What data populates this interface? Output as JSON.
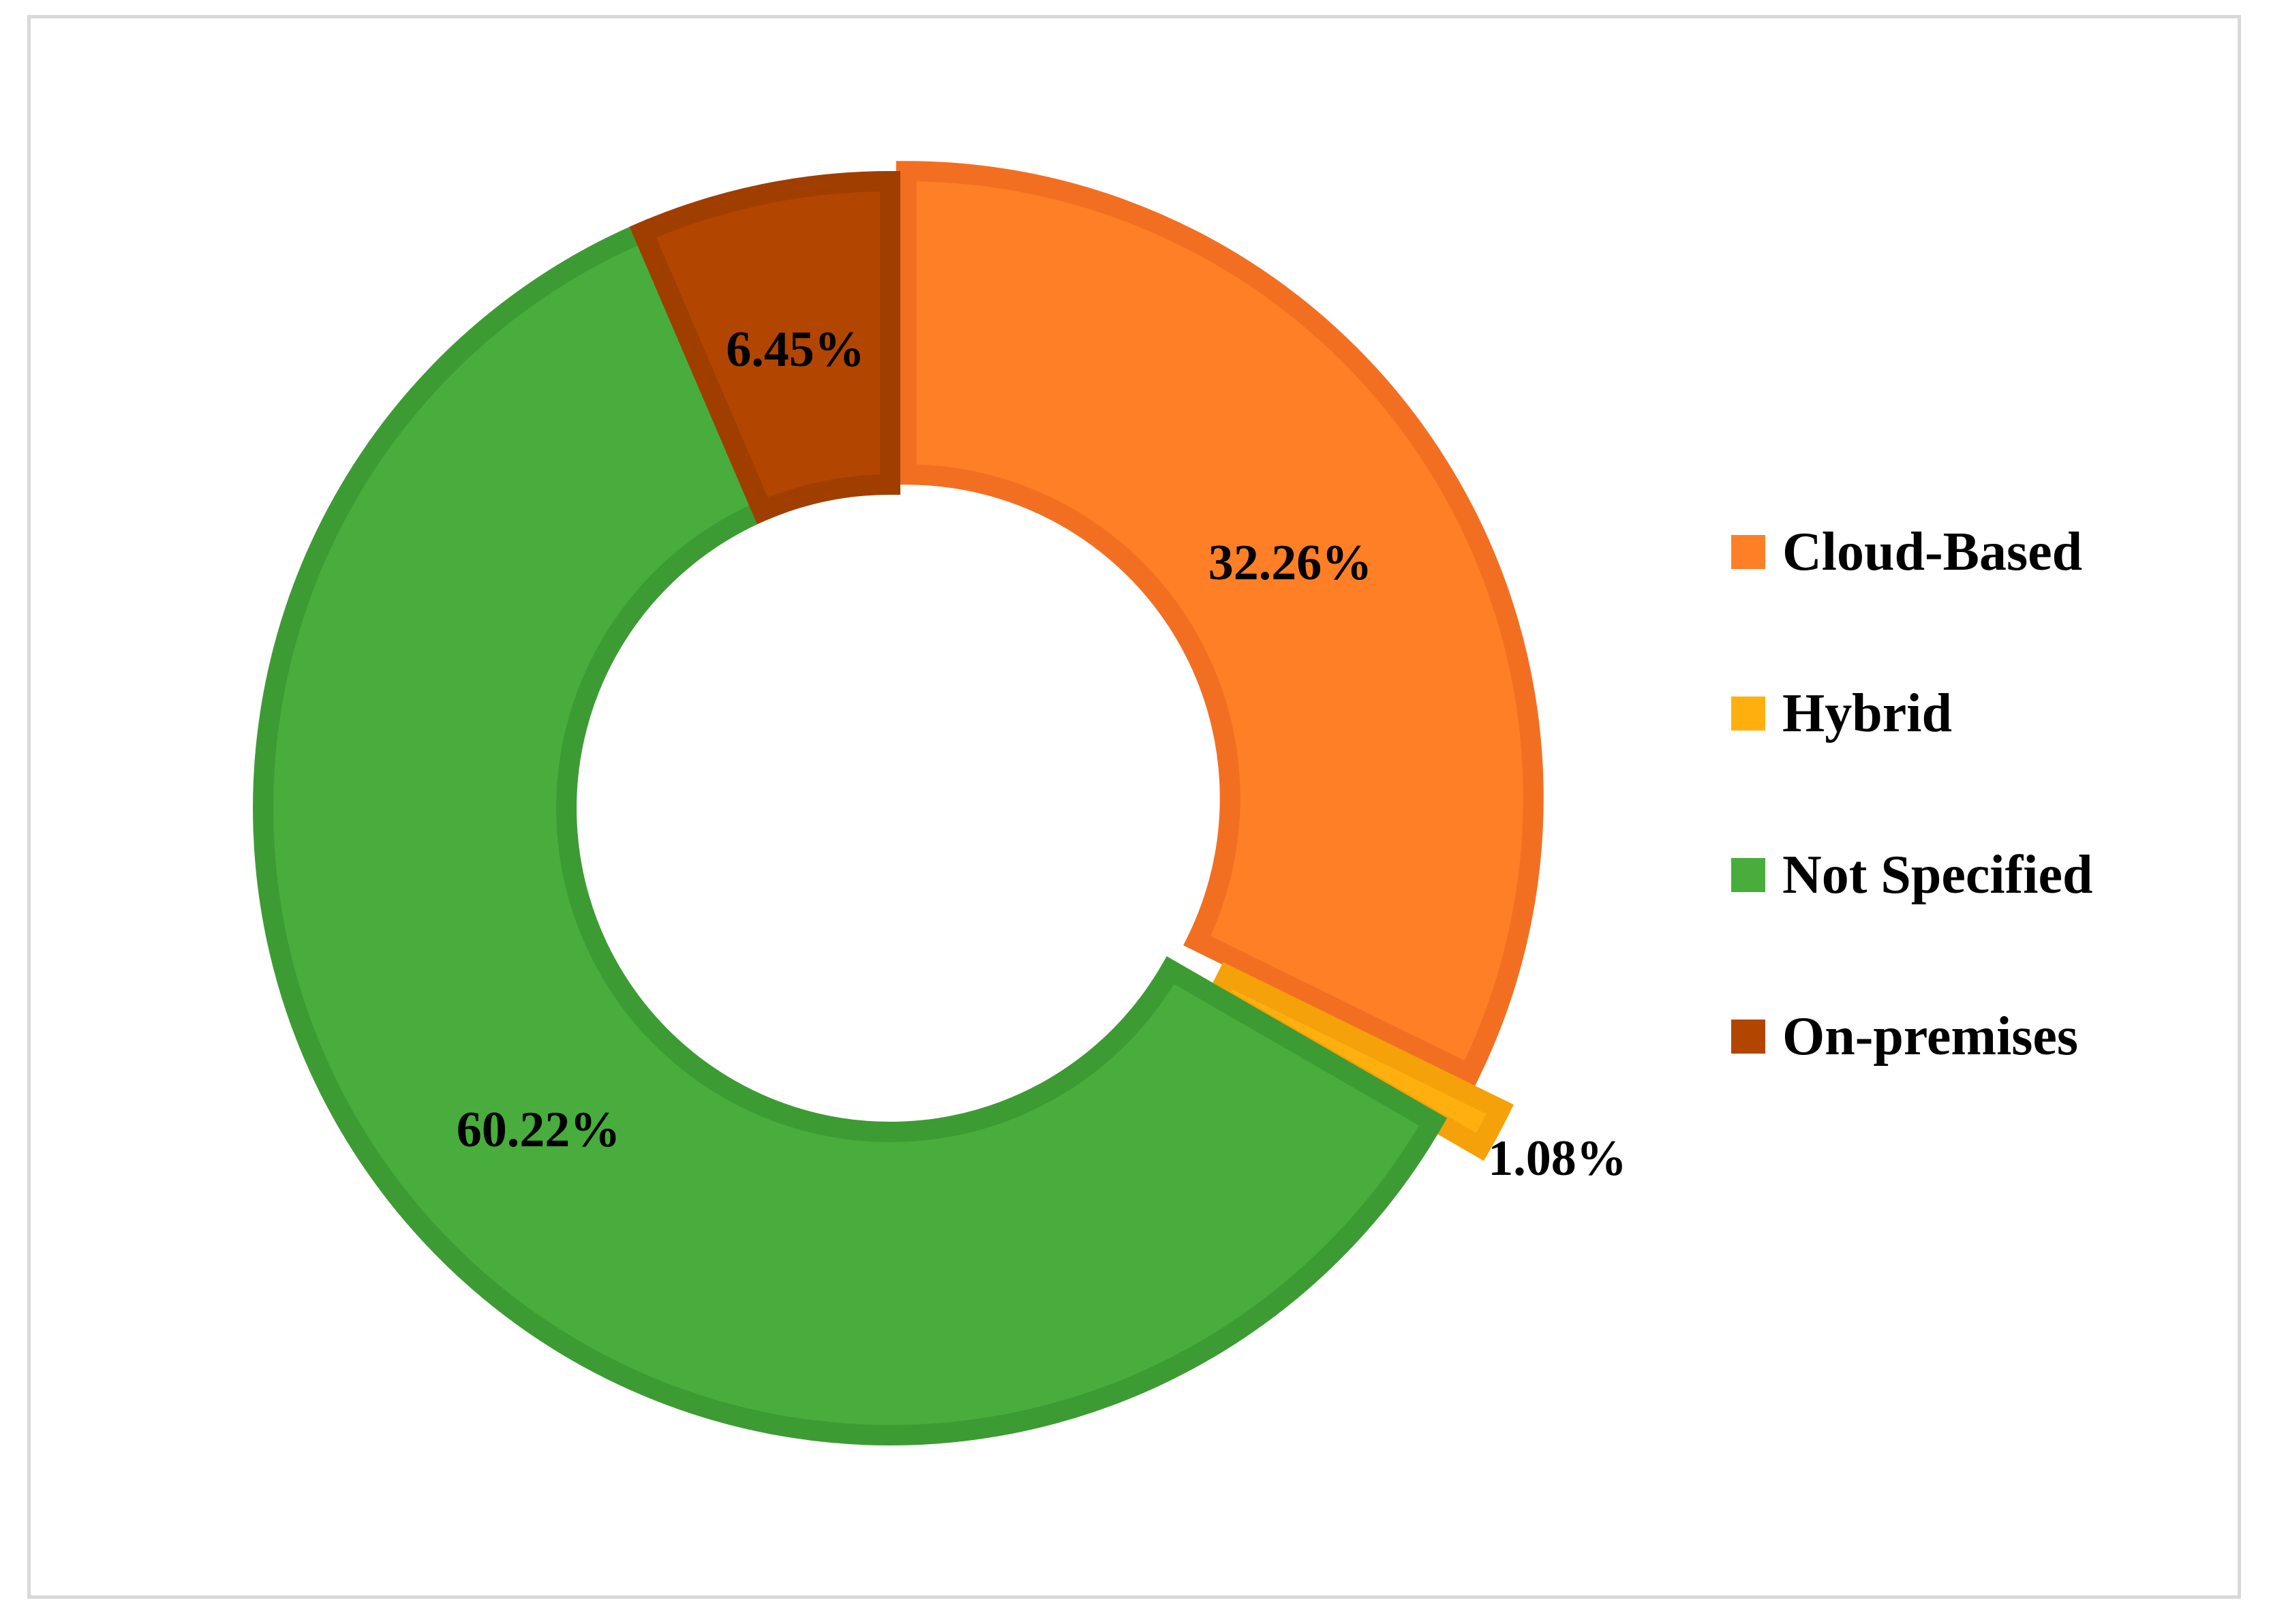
{
  "chart_data": {
    "type": "pie",
    "variant": "donut",
    "title": "",
    "legend_position": "right",
    "categories": [
      "Cloud-Based",
      "Hybrid",
      "Not Specified",
      "On-premises"
    ],
    "values": [
      32.26,
      1.08,
      60.22,
      6.45
    ],
    "value_labels": [
      "32.26%",
      "1.08%",
      "60.22%",
      "6.45%"
    ],
    "exploded": [
      "Cloud-Based",
      "Hybrid"
    ],
    "colors": [
      "#FF7F27",
      "#FFB00F",
      "#48AD3C",
      "#B24600"
    ],
    "border_colors": [
      "#F26F22",
      "#F5A10A",
      "#3D9B33",
      "#A03E00"
    ]
  }
}
